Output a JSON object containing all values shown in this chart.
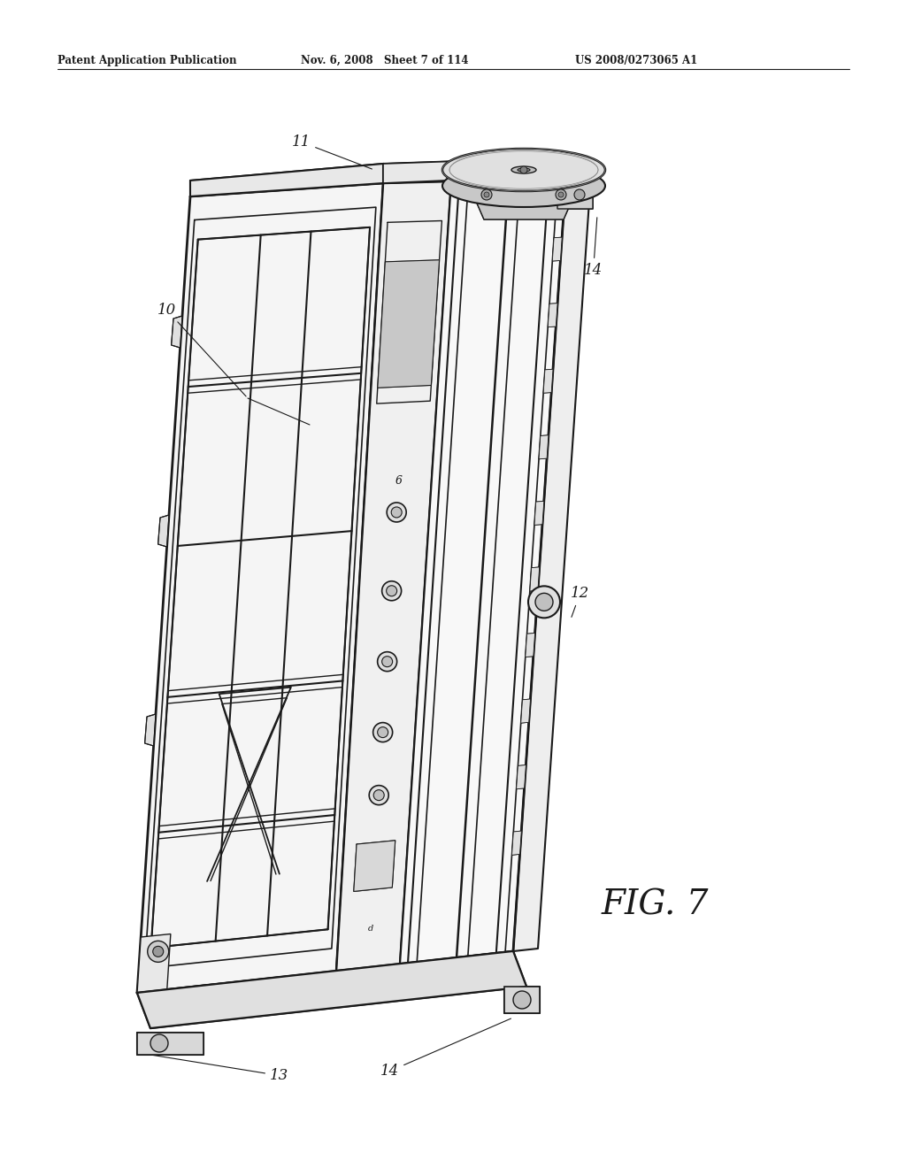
{
  "header_left": "Patent Application Publication",
  "header_middle": "Nov. 6, 2008   Sheet 7 of 114",
  "header_right": "US 2008/0273065 A1",
  "fig_label": "FIG. 7",
  "bg_color": "#ffffff",
  "line_color": "#1a1a1a"
}
